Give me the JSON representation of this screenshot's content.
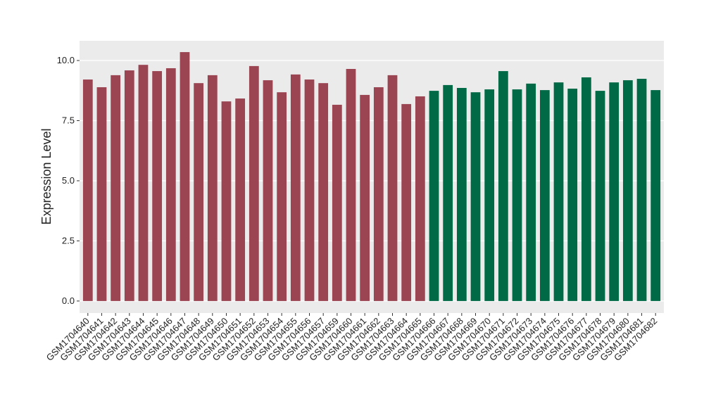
{
  "chart_data": {
    "type": "bar",
    "y_label": "Expression Level",
    "categories": [
      "GSM1704640",
      "GSM1704641",
      "GSM1704642",
      "GSM1704643",
      "GSM1704644",
      "GSM1704645",
      "GSM1704646",
      "GSM1704647",
      "GSM1704648",
      "GSM1704649",
      "GSM1704650",
      "GSM1704651",
      "GSM1704652",
      "GSM1704653",
      "GSM1704654",
      "GSM1704655",
      "GSM1704656",
      "GSM1704657",
      "GSM1704659",
      "GSM1704660",
      "GSM1704661",
      "GSM1704662",
      "GSM1704663",
      "GSM1704664",
      "GSM1704665",
      "GSM1704666",
      "GSM1704667",
      "GSM1704668",
      "GSM1704669",
      "GSM1704670",
      "GSM1704671",
      "GSM1704672",
      "GSM1704673",
      "GSM1704674",
      "GSM1704675",
      "GSM1704676",
      "GSM1704677",
      "GSM1704678",
      "GSM1704679",
      "GSM1704680",
      "GSM1704681",
      "GSM1704682"
    ],
    "values": [
      9.21,
      8.89,
      9.39,
      9.59,
      9.82,
      9.56,
      9.68,
      10.35,
      9.06,
      9.39,
      8.3,
      8.42,
      9.77,
      9.18,
      8.68,
      9.42,
      9.21,
      9.06,
      8.16,
      9.65,
      8.57,
      8.89,
      9.39,
      8.19,
      8.51,
      8.74,
      8.98,
      8.86,
      8.68,
      8.8,
      9.56,
      8.8,
      9.04,
      8.77,
      9.09,
      8.83,
      9.3,
      8.74,
      9.09,
      9.18,
      9.24,
      8.77
    ],
    "colors": [
      "#9b4452",
      "#9b4452",
      "#9b4452",
      "#9b4452",
      "#9b4452",
      "#9b4452",
      "#9b4452",
      "#9b4452",
      "#9b4452",
      "#9b4452",
      "#9b4452",
      "#9b4452",
      "#9b4452",
      "#9b4452",
      "#9b4452",
      "#9b4452",
      "#9b4452",
      "#9b4452",
      "#9b4452",
      "#9b4452",
      "#9b4452",
      "#9b4452",
      "#9b4452",
      "#9b4452",
      "#9b4452",
      "#006a47",
      "#006a47",
      "#006a47",
      "#006a47",
      "#006a47",
      "#006a47",
      "#006a47",
      "#006a47",
      "#006a47",
      "#006a47",
      "#006a47",
      "#006a47",
      "#006a47",
      "#006a47",
      "#006a47",
      "#006a47",
      "#006a47"
    ],
    "ylim": [
      -0.5,
      10.82
    ],
    "yticks": [
      {
        "value": 0,
        "label": "0.0"
      },
      2.5,
      {
        "value": 5,
        "label": "5.0"
      },
      7.5,
      {
        "value": 10,
        "label": "10.0"
      }
    ],
    "grid": true
  }
}
